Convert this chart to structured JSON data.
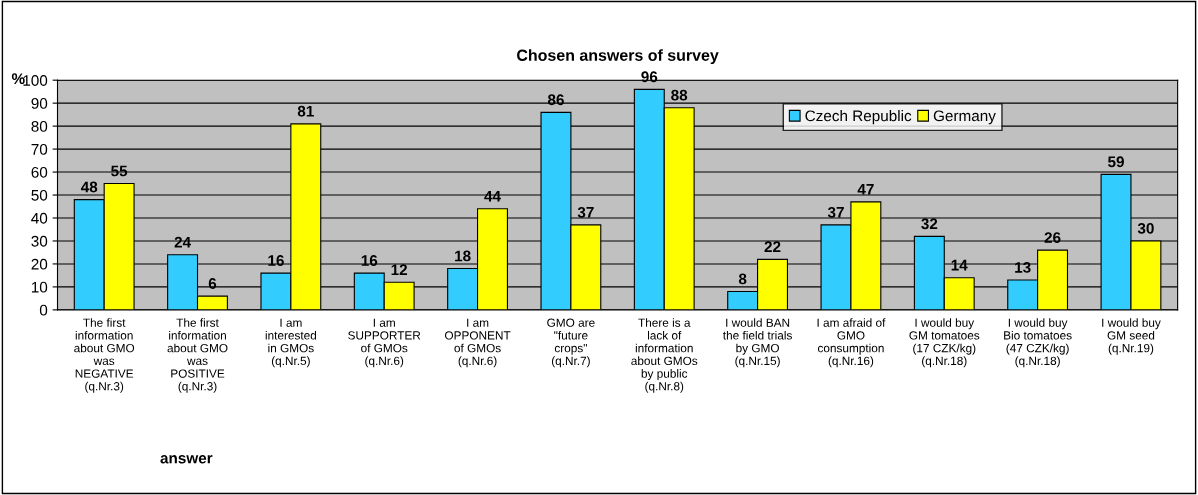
{
  "chart_data": {
    "type": "bar",
    "title": "Chosen answers of survey",
    "xlabel": "answer",
    "ylabel": "%",
    "categories": [
      "The first\ninformation\nabout GMO\nwas\nNEGATIVE\n(q.Nr.3)",
      "The first\ninformation\nabout GMO\nwas\nPOSITIVE\n(q.Nr.3)",
      "I am\ninterested\nin GMOs\n(q.Nr.5)",
      "I am\nSUPPORTER\nof GMOs\n(q.Nr.6)",
      "I am\nOPPONENT\nof GMOs\n(q.Nr.6)",
      "GMO are\n\"future\ncrops\"\n(q.Nr.7)",
      "There is a\nlack of\ninformation\nabout GMOs\nby public\n(q.Nr.8)",
      "I would BAN\nthe field trials\nby GMO\n(q.Nr.15)",
      "I am afraid of\nGMO\nconsumption\n(q.Nr.16)",
      "I would buy\nGM tomatoes\n(17 CZK/kg)\n(q.Nr.18)",
      "I would buy\nBio tomatoes\n(47 CZK/kg)\n(q.Nr.18)",
      "I would buy\nGM seed\n(q.Nr.19)"
    ],
    "series": [
      {
        "name": "Czech Republic",
        "color": "#33ccff",
        "values": [
          48,
          24,
          16,
          16,
          18,
          86,
          96,
          8,
          37,
          32,
          13,
          59
        ]
      },
      {
        "name": "Germany",
        "color": "#ffff00",
        "values": [
          55,
          6,
          81,
          12,
          44,
          37,
          88,
          22,
          47,
          14,
          26,
          30
        ]
      }
    ],
    "ylim": [
      0,
      100
    ],
    "yticks": [
      0,
      10,
      20,
      30,
      40,
      50,
      60,
      70,
      80,
      90,
      100
    ],
    "grid": "y",
    "legend": "top right",
    "data_labels": true
  }
}
